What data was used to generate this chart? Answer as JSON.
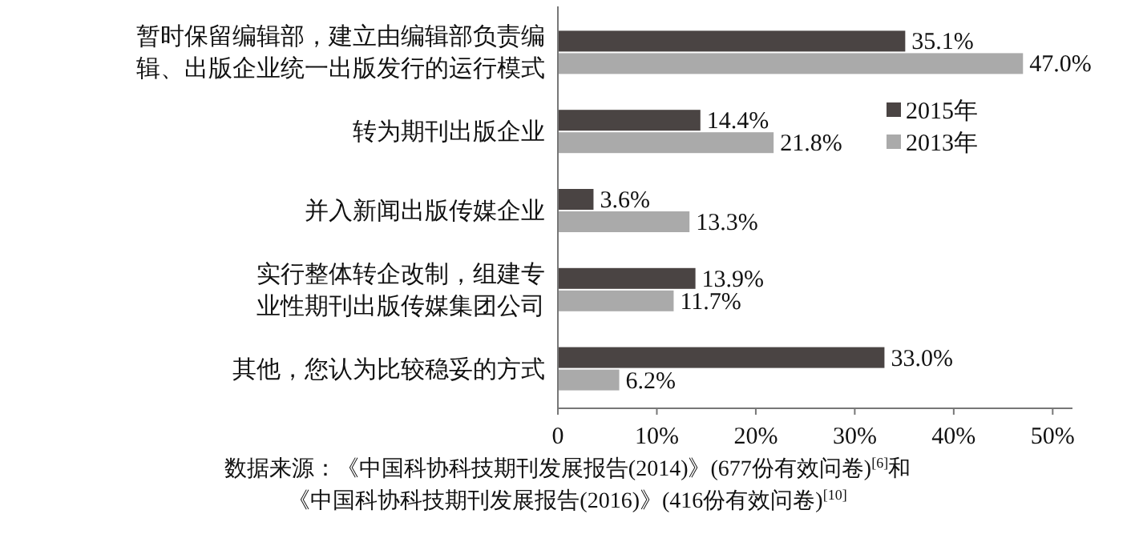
{
  "chart_data": {
    "type": "bar",
    "orientation": "horizontal",
    "categories": [
      "暂时保留编辑部，建立由编辑部负责编辑、出版企业统一出版发行的运行模式",
      "转为期刊出版企业",
      "并入新闻出版传媒企业",
      "实行整体转企改制，组建专业性期刊出版传媒集团公司",
      "其他，您认为比较稳妥的方式"
    ],
    "series": [
      {
        "name": "2015年",
        "color": "#4a4443",
        "values": [
          35.1,
          14.4,
          3.6,
          13.9,
          33.0
        ],
        "value_labels": [
          "35.1%",
          "14.4%",
          "3.6%",
          "13.9%",
          "33.0%"
        ]
      },
      {
        "name": "2013年",
        "color": "#aaaaaa",
        "values": [
          47.0,
          21.8,
          13.3,
          11.7,
          6.2
        ],
        "value_labels": [
          "47.0%",
          "21.8%",
          "13.3%",
          "11.7%",
          "6.2%"
        ]
      }
    ],
    "xlim": [
      0,
      52
    ],
    "xticks": [
      0,
      {
        "value": 10,
        "label": "10%"
      },
      {
        "value": 20,
        "label": "20%"
      },
      {
        "value": 30,
        "label": "30%"
      },
      {
        "value": 40,
        "label": "40%"
      },
      {
        "value": 50,
        "label": "50%"
      }
    ],
    "legend": "right",
    "grid": false,
    "annotations": [
      "数据来源：《中国科协科技期刊发展报告(2014)》(677份有效问卷)$^{[6]}$和",
      "《中国科协科技期刊发展报告(2016)》(416份有效问卷)$^{[10]}$"
    ]
  }
}
